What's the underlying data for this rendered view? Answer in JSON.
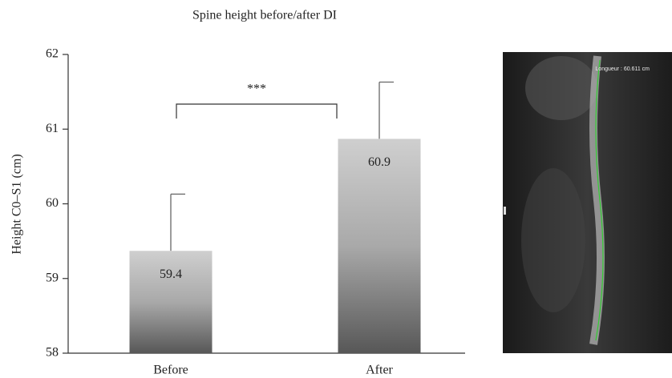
{
  "chart_data": {
    "type": "bar",
    "title": "Spine height before/after DI",
    "ylabel": "Height C0–S1 (cm)",
    "categories": [
      "Before",
      "After"
    ],
    "values": [
      59.37,
      60.87
    ],
    "value_labels": [
      "59.4",
      "60.9"
    ],
    "errors": [
      0.76,
      0.76
    ],
    "ylim": [
      58,
      62
    ],
    "yticks": [
      58,
      59,
      60,
      61,
      62
    ],
    "annotation": "***",
    "image_caption": "Longueur : 60.611 cm"
  }
}
